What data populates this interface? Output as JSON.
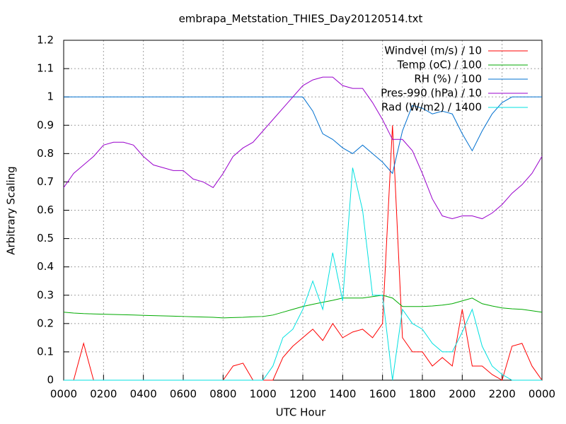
{
  "chart_data": {
    "type": "line",
    "title": "embrapa_Metstation_THIES_Day20120514.txt",
    "x_label": "UTC Hour",
    "y_label": "Arbitrary Scaling",
    "x": [
      0,
      0.5,
      1,
      1.5,
      2,
      2.5,
      3,
      3.5,
      4,
      4.5,
      5,
      5.5,
      6,
      6.5,
      7,
      7.5,
      8,
      8.5,
      9,
      9.5,
      10,
      10.5,
      11,
      11.5,
      12,
      12.5,
      13,
      13.5,
      14,
      14.5,
      15,
      15.5,
      16,
      16.5,
      17,
      17.5,
      18,
      18.5,
      19,
      19.5,
      20,
      20.5,
      21,
      21.5,
      22,
      22.5,
      23,
      23.5,
      24
    ],
    "series": [
      {
        "name": "Windvel (m/s) / 10",
        "color": "#ff0000",
        "values": [
          0,
          0,
          0.13,
          0,
          0,
          0,
          0,
          0,
          0,
          0,
          0,
          0,
          0,
          0,
          0,
          0,
          0,
          0.05,
          0.06,
          0,
          0,
          0,
          0.08,
          0.12,
          0.15,
          0.18,
          0.14,
          0.2,
          0.15,
          0.17,
          0.18,
          0.15,
          0.2,
          0.9,
          0.15,
          0.1,
          0.1,
          0.05,
          0.08,
          0.05,
          0.25,
          0.05,
          0.05,
          0.02,
          0,
          0.12,
          0.13,
          0.05,
          0
        ]
      },
      {
        "name": "Temp (oC) / 100",
        "color": "#00aa00",
        "values": [
          0.24,
          0.237,
          0.235,
          0.234,
          0.233,
          0.232,
          0.231,
          0.23,
          0.229,
          0.228,
          0.227,
          0.226,
          0.225,
          0.224,
          0.223,
          0.222,
          0.22,
          0.221,
          0.222,
          0.224,
          0.225,
          0.23,
          0.24,
          0.25,
          0.26,
          0.268,
          0.275,
          0.282,
          0.29,
          0.29,
          0.29,
          0.295,
          0.3,
          0.29,
          0.26,
          0.26,
          0.26,
          0.262,
          0.265,
          0.27,
          0.28,
          0.29,
          0.27,
          0.262,
          0.255,
          0.252,
          0.25,
          0.245,
          0.24
        ]
      },
      {
        "name": "RH (%) / 100",
        "color": "#0070d0",
        "values": [
          1,
          1,
          1,
          1,
          1,
          1,
          1,
          1,
          1,
          1,
          1,
          1,
          1,
          1,
          1,
          1,
          1,
          1,
          1,
          1,
          1,
          1,
          1,
          1,
          1,
          0.95,
          0.87,
          0.85,
          0.82,
          0.8,
          0.83,
          0.8,
          0.77,
          0.73,
          0.88,
          0.97,
          0.96,
          0.94,
          0.95,
          0.94,
          0.87,
          0.81,
          0.88,
          0.94,
          0.98,
          1,
          1,
          1,
          1
        ]
      },
      {
        "name": "Pres-990 (hPa) / 10",
        "color": "#9900cc",
        "values": [
          0.68,
          0.73,
          0.76,
          0.79,
          0.83,
          0.84,
          0.84,
          0.83,
          0.79,
          0.76,
          0.75,
          0.74,
          0.74,
          0.71,
          0.7,
          0.68,
          0.73,
          0.79,
          0.82,
          0.84,
          0.88,
          0.92,
          0.96,
          1,
          1.04,
          1.06,
          1.07,
          1.07,
          1.04,
          1.03,
          1.03,
          0.98,
          0.92,
          0.85,
          0.85,
          0.81,
          0.73,
          0.64,
          0.58,
          0.57,
          0.58,
          0.58,
          0.57,
          0.59,
          0.62,
          0.66,
          0.69,
          0.73,
          0.79
        ]
      },
      {
        "name": "Rad (W/m2) / 1400",
        "color": "#00e0e0",
        "values": [
          0,
          0,
          0,
          0,
          0,
          0,
          0,
          0,
          0,
          0,
          0,
          0,
          0,
          0,
          0,
          0,
          0,
          0,
          0,
          0,
          0,
          0.05,
          0.15,
          0.18,
          0.25,
          0.35,
          0.25,
          0.45,
          0.28,
          0.75,
          0.6,
          0.3,
          0.3,
          0,
          0.25,
          0.2,
          0.18,
          0.13,
          0.1,
          0.1,
          0.17,
          0.25,
          0.12,
          0.05,
          0.02,
          0,
          0,
          0,
          0
        ]
      }
    ],
    "xlim": [
      0,
      24
    ],
    "xticks": [
      {
        "value": 0,
        "label": "0000"
      },
      {
        "value": 2,
        "label": "0200"
      },
      {
        "value": 4,
        "label": "0400"
      },
      {
        "value": 6,
        "label": "0600"
      },
      {
        "value": 8,
        "label": "0800"
      },
      {
        "value": 10,
        "label": "1000"
      },
      {
        "value": 12,
        "label": "1200"
      },
      {
        "value": 14,
        "label": "1400"
      },
      {
        "value": 16,
        "label": "1600"
      },
      {
        "value": 18,
        "label": "1800"
      },
      {
        "value": 20,
        "label": "2000"
      },
      {
        "value": 22,
        "label": "2200"
      },
      {
        "value": 24,
        "label": "0000"
      }
    ],
    "ylim": [
      0,
      1.2
    ],
    "yticks": [
      0,
      0.1,
      0.2,
      0.3,
      0.4,
      0.5,
      0.6,
      0.7,
      0.8,
      0.9,
      1,
      1.1,
      1.2
    ],
    "grid": true,
    "legend": "top-right"
  }
}
